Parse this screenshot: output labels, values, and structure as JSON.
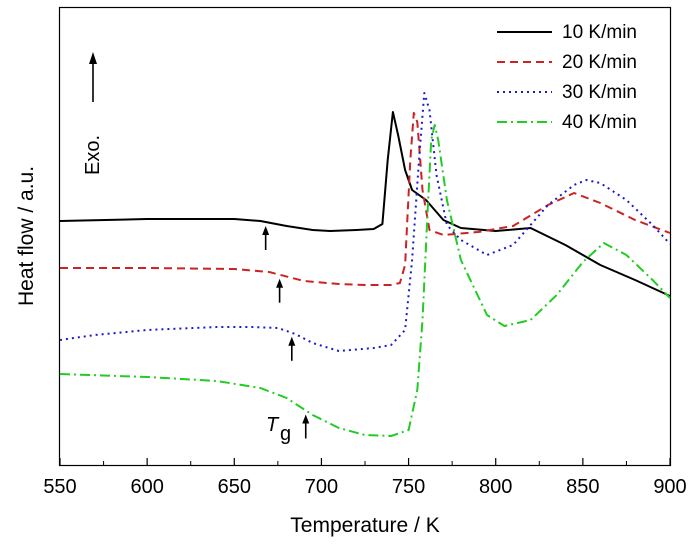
{
  "chart_data": {
    "type": "line",
    "title": "",
    "xlabel": "Temperature / K",
    "ylabel": "Heat flow / a.u.",
    "xlim": [
      550,
      900
    ],
    "xticks": [
      "550",
      "600",
      "650",
      "700",
      "750",
      "800",
      "850",
      "900"
    ],
    "grid": false,
    "legend_position": "top-right",
    "annotations": {
      "exo": "Exo.",
      "tg_main": "T",
      "tg_sub": "g"
    },
    "series": [
      {
        "name": "10 K/min",
        "color": "#000000",
        "dash": "solid",
        "tg": 668,
        "points": [
          [
            550,
            221
          ],
          [
            600,
            219
          ],
          [
            650,
            219
          ],
          [
            665,
            221
          ],
          [
            680,
            226
          ],
          [
            695,
            230
          ],
          [
            705,
            231
          ],
          [
            720,
            230
          ],
          [
            730,
            229
          ],
          [
            735,
            224
          ],
          [
            738,
            160
          ],
          [
            741,
            112
          ],
          [
            744,
            135
          ],
          [
            748,
            170
          ],
          [
            752,
            190
          ],
          [
            760,
            200
          ],
          [
            770,
            220
          ],
          [
            780,
            228
          ],
          [
            800,
            231
          ],
          [
            820,
            228
          ],
          [
            840,
            245
          ],
          [
            860,
            265
          ],
          [
            880,
            280
          ],
          [
            900,
            296
          ]
        ]
      },
      {
        "name": "20 K/min",
        "color": "#cc2222",
        "dash": "8 5",
        "tg": 676,
        "points": [
          [
            550,
            268
          ],
          [
            600,
            268
          ],
          [
            650,
            269
          ],
          [
            670,
            272
          ],
          [
            690,
            281
          ],
          [
            710,
            284
          ],
          [
            725,
            285
          ],
          [
            740,
            285
          ],
          [
            745,
            283
          ],
          [
            748,
            265
          ],
          [
            751,
            160
          ],
          [
            753,
            113
          ],
          [
            755,
            122
          ],
          [
            758,
            190
          ],
          [
            762,
            230
          ],
          [
            770,
            235
          ],
          [
            790,
            232
          ],
          [
            810,
            226
          ],
          [
            830,
            205
          ],
          [
            845,
            193
          ],
          [
            860,
            203
          ],
          [
            880,
            220
          ],
          [
            900,
            233
          ]
        ]
      },
      {
        "name": "30 K/min",
        "color": "#1a1acc",
        "dash": "2 4",
        "tg": 683,
        "points": [
          [
            550,
            340
          ],
          [
            570,
            335
          ],
          [
            600,
            330
          ],
          [
            640,
            327
          ],
          [
            660,
            327
          ],
          [
            675,
            328
          ],
          [
            685,
            334
          ],
          [
            695,
            343
          ],
          [
            710,
            351
          ],
          [
            730,
            348
          ],
          [
            740,
            345
          ],
          [
            748,
            330
          ],
          [
            752,
            260
          ],
          [
            756,
            160
          ],
          [
            759,
            93
          ],
          [
            762,
            110
          ],
          [
            766,
            175
          ],
          [
            772,
            225
          ],
          [
            780,
            240
          ],
          [
            795,
            255
          ],
          [
            810,
            245
          ],
          [
            830,
            205
          ],
          [
            845,
            185
          ],
          [
            852,
            180
          ],
          [
            860,
            183
          ],
          [
            875,
            200
          ],
          [
            890,
            225
          ],
          [
            900,
            244
          ]
        ]
      },
      {
        "name": "40 K/min",
        "color": "#22cc22",
        "dash": "10 4 2 4",
        "tg": 691,
        "points": [
          [
            550,
            374
          ],
          [
            600,
            377
          ],
          [
            640,
            381
          ],
          [
            665,
            388
          ],
          [
            680,
            398
          ],
          [
            695,
            415
          ],
          [
            710,
            428
          ],
          [
            725,
            435
          ],
          [
            740,
            436
          ],
          [
            750,
            430
          ],
          [
            755,
            390
          ],
          [
            758,
            320
          ],
          [
            761,
            210
          ],
          [
            763,
            140
          ],
          [
            765,
            125
          ],
          [
            767,
            140
          ],
          [
            772,
            200
          ],
          [
            780,
            260
          ],
          [
            795,
            315
          ],
          [
            805,
            326
          ],
          [
            820,
            320
          ],
          [
            835,
            295
          ],
          [
            850,
            262
          ],
          [
            862,
            243
          ],
          [
            875,
            255
          ],
          [
            890,
            280
          ],
          [
            900,
            298
          ]
        ]
      }
    ]
  }
}
